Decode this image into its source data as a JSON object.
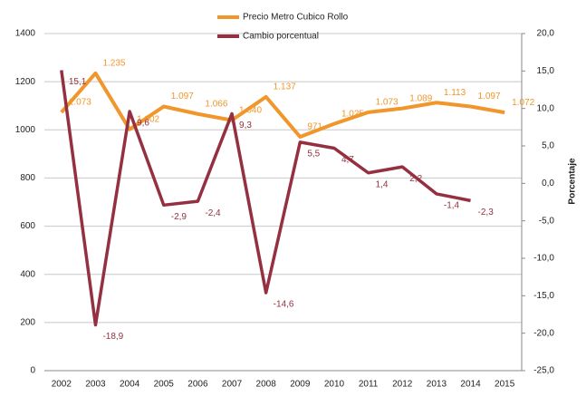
{
  "chart_data": {
    "type": "line",
    "categories": [
      "2002",
      "2003",
      "2004",
      "2005",
      "2006",
      "2007",
      "2008",
      "2009",
      "2010",
      "2011",
      "2012",
      "2013",
      "2014",
      "2015"
    ],
    "series": [
      {
        "name": "Precio Metro Cubico Rollo",
        "color": "#f0962a",
        "axis": "y",
        "values": [
          1073,
          1235,
          1002,
          1097,
          1066,
          1040,
          1137,
          971,
          1025,
          1073,
          1089,
          1113,
          1097,
          1072
        ],
        "value_labels": [
          "1.073",
          "1.235",
          "1.002",
          "1.097",
          "1.066",
          "1.040",
          "1.137",
          "971",
          "1.025",
          "1.073",
          "1.089",
          "1.113",
          "1.097",
          "1.072"
        ]
      },
      {
        "name": "Cambio porcentual",
        "color": "#953040",
        "axis": "y2",
        "values": [
          15.1,
          -18.9,
          9.6,
          -2.9,
          -2.4,
          9.3,
          -14.6,
          5.5,
          4.7,
          1.4,
          2.2,
          -1.4,
          -2.3,
          null
        ],
        "value_labels": [
          "15,1",
          "-18,9",
          "9,6",
          "-2,9",
          "-2,4",
          "9,3",
          "-14,6",
          "5,5",
          "4,7",
          "1,4",
          "2,2",
          "-1,4",
          "-2,3",
          null
        ]
      }
    ],
    "ylim": [
      0,
      1400
    ],
    "yticks": [
      0,
      200,
      400,
      600,
      800,
      1000,
      1200,
      1400
    ],
    "y2lim": [
      -25,
      20
    ],
    "y2ticks": [
      {
        "value": -25,
        "label": "-25,0"
      },
      {
        "value": -20,
        "label": "-20,0"
      },
      {
        "value": -15,
        "label": "-15,0"
      },
      {
        "value": -10,
        "label": "-10,0"
      },
      {
        "value": -5,
        "label": "-5,0"
      },
      {
        "value": 0,
        "label": "0,0"
      },
      {
        "value": 5,
        "label": "5,0"
      },
      {
        "value": 10,
        "label": "10,0"
      },
      {
        "value": 15,
        "label": "15,0"
      },
      {
        "value": 20,
        "label": "20,0"
      }
    ],
    "y2label": "Porcentaje",
    "grid": true,
    "legend": "top"
  }
}
